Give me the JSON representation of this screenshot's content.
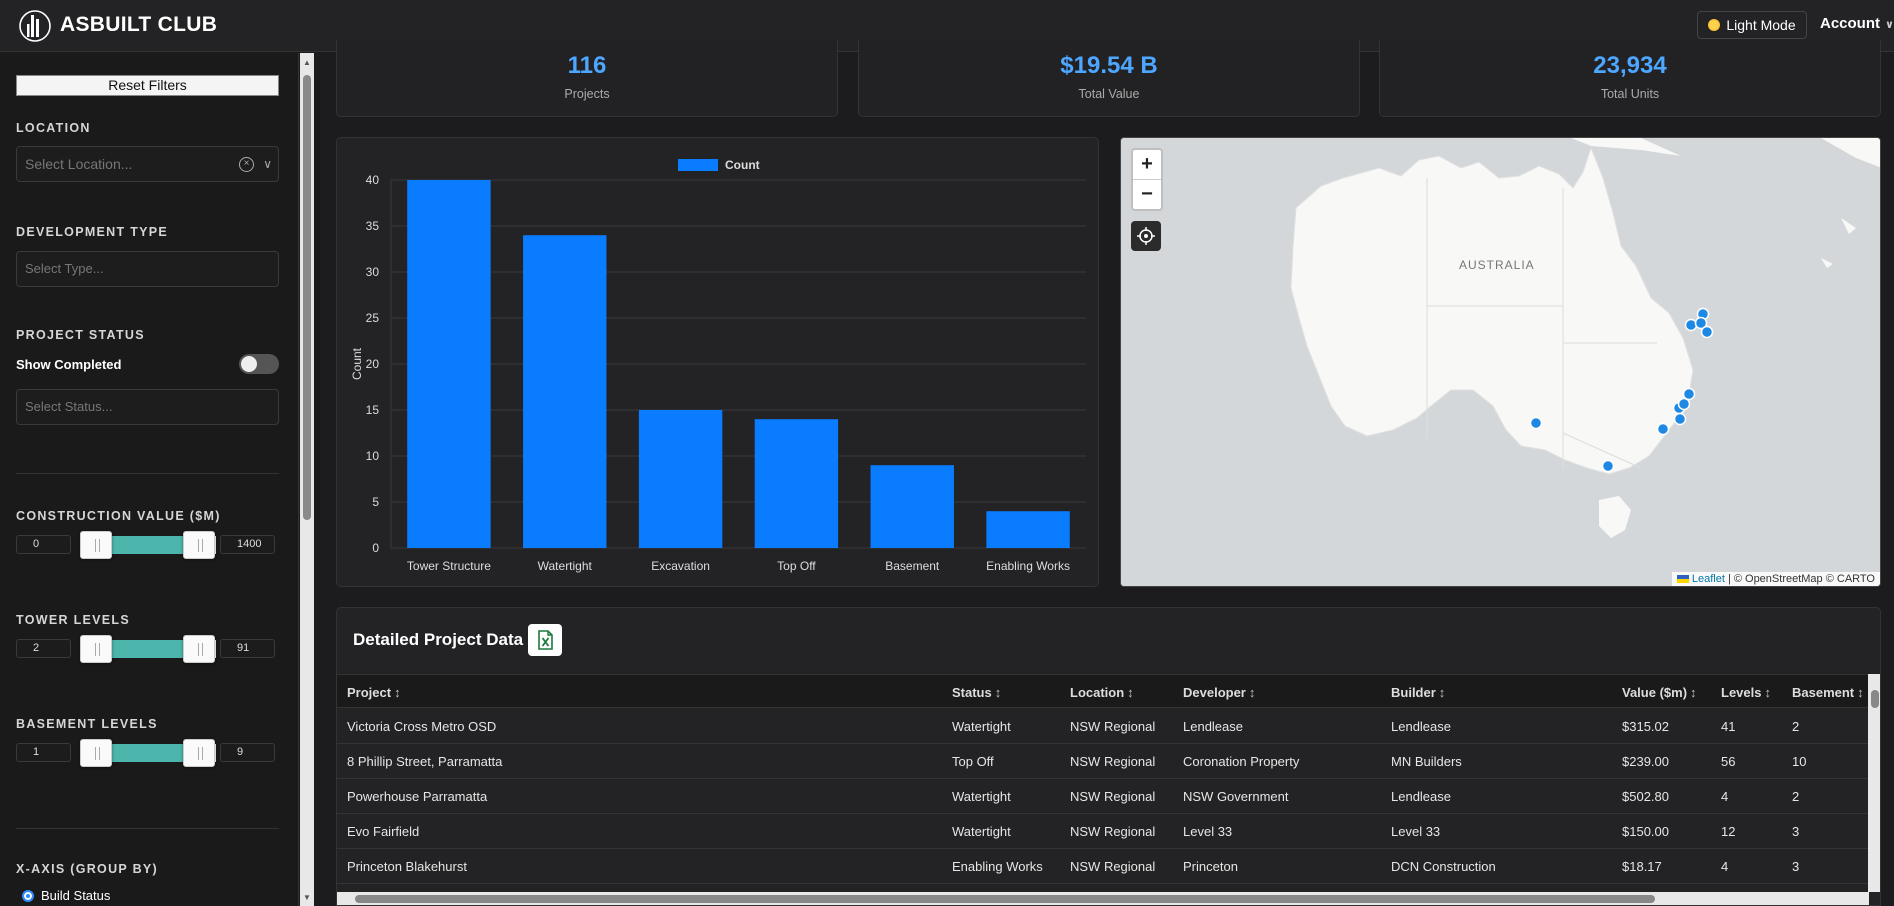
{
  "header": {
    "brand": "ASBUILT CLUB",
    "light_mode_label": "Light Mode",
    "account_label": "Account"
  },
  "sidebar": {
    "reset_label": "Reset Filters",
    "location": {
      "title": "LOCATION",
      "placeholder": "Select Location..."
    },
    "development_type": {
      "title": "DEVELOPMENT TYPE",
      "placeholder": "Select Type..."
    },
    "project_status": {
      "title": "PROJECT STATUS",
      "show_completed_label": "Show Completed",
      "show_completed": false,
      "placeholder": "Select Status..."
    },
    "construction_value": {
      "title": "CONSTRUCTION VALUE ($M)",
      "min": "0",
      "max": "1400"
    },
    "tower_levels": {
      "title": "TOWER LEVELS",
      "min": "2",
      "max": "91"
    },
    "basement_levels": {
      "title": "BASEMENT LEVELS",
      "min": "1",
      "max": "9"
    },
    "x_axis": {
      "title": "X-AXIS (GROUP BY)",
      "selected_option": "Build Status"
    }
  },
  "stats": [
    {
      "value": "116",
      "label": "Projects"
    },
    {
      "value": "$19.54 B",
      "label": "Total Value"
    },
    {
      "value": "23,934",
      "label": "Total Units"
    }
  ],
  "chart_data": {
    "type": "bar",
    "categories": [
      "Tower Structure",
      "Watertight",
      "Excavation",
      "Top Off",
      "Basement",
      "Enabling Works"
    ],
    "series": [
      {
        "name": "Count",
        "values": [
          40,
          34,
          15,
          14,
          9,
          4
        ],
        "color": "#0a7cff"
      }
    ],
    "y_ticks": [
      "0",
      "5",
      "10",
      "15",
      "20",
      "25",
      "30",
      "35",
      "40"
    ],
    "ylabel": "Count",
    "ylim": [
      0,
      40
    ],
    "grid": true,
    "legend": "top-center"
  },
  "map": {
    "country_label": "AUSTRALIA",
    "attribution_leaflet": "Leaflet",
    "attribution_rest": "| © OpenStreetMap © CARTO",
    "marker_color": "#1e88e5"
  },
  "table": {
    "title": "Detailed Project Data",
    "columns": [
      "Project",
      "Status",
      "Location",
      "Developer",
      "Builder",
      "Value ($m)",
      "Levels",
      "Basement"
    ],
    "rows": [
      [
        "Victoria Cross Metro OSD",
        "Watertight",
        "NSW Regional",
        "Lendlease",
        "Lendlease",
        "$315.02",
        "41",
        "2"
      ],
      [
        "8 Phillip Street, Parramatta",
        "Top Off",
        "NSW Regional",
        "Coronation Property",
        "MN Builders",
        "$239.00",
        "56",
        "10"
      ],
      [
        "Powerhouse Parramatta",
        "Watertight",
        "NSW Regional",
        "NSW Government",
        "Lendlease",
        "$502.80",
        "4",
        "2"
      ],
      [
        "Evo Fairfield",
        "Watertight",
        "NSW Regional",
        "Level 33",
        "Level 33",
        "$150.00",
        "12",
        "3"
      ],
      [
        "Princeton Blakehurst",
        "Enabling Works",
        "NSW Regional",
        "Princeton",
        "DCN Construction",
        "$18.17",
        "4",
        "3"
      ]
    ]
  },
  "colors": {
    "accent": "#4da6ff",
    "bar": "#0a7cff",
    "slider": "#4db6ac",
    "background": "#1c1c1e"
  }
}
